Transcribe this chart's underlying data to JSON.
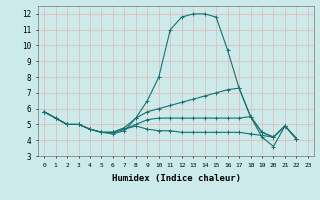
{
  "xlabel": "Humidex (Indice chaleur)",
  "xlim": [
    -0.5,
    23.5
  ],
  "ylim": [
    3,
    12.5
  ],
  "yticks": [
    3,
    4,
    5,
    6,
    7,
    8,
    9,
    10,
    11,
    12
  ],
  "xticks": [
    0,
    1,
    2,
    3,
    4,
    5,
    6,
    7,
    8,
    9,
    10,
    11,
    12,
    13,
    14,
    15,
    16,
    17,
    18,
    19,
    20,
    21,
    22,
    23
  ],
  "background_color": "#cceaea",
  "grid_color": "#e8b4b4",
  "line_color": "#1a7070",
  "line_width": 0.8,
  "marker": "+",
  "marker_size": 3,
  "series": [
    [
      5.8,
      5.4,
      5.0,
      5.0,
      4.7,
      4.5,
      4.4,
      4.6,
      5.4,
      6.5,
      8.0,
      11.0,
      11.8,
      12.0,
      12.0,
      11.8,
      9.7,
      7.3,
      5.5,
      4.2,
      3.6,
      4.9,
      4.1
    ],
    [
      5.8,
      5.4,
      5.0,
      5.0,
      4.7,
      4.5,
      4.5,
      4.8,
      5.4,
      5.8,
      6.0,
      6.2,
      6.4,
      6.6,
      6.8,
      7.0,
      7.2,
      7.3,
      5.5,
      4.5,
      4.2,
      4.9,
      4.1
    ],
    [
      5.8,
      5.4,
      5.0,
      5.0,
      4.7,
      4.5,
      4.5,
      4.7,
      5.0,
      5.3,
      5.4,
      5.4,
      5.4,
      5.4,
      5.4,
      5.4,
      5.4,
      5.4,
      5.5,
      4.5,
      4.2,
      4.9,
      4.1
    ],
    [
      5.8,
      5.4,
      5.0,
      5.0,
      4.7,
      4.5,
      4.5,
      4.7,
      4.9,
      4.7,
      4.6,
      4.6,
      4.5,
      4.5,
      4.5,
      4.5,
      4.5,
      4.5,
      4.4,
      4.3,
      4.2,
      4.9,
      4.1
    ]
  ],
  "series_x": [
    0,
    1,
    2,
    3,
    4,
    5,
    6,
    7,
    8,
    9,
    10,
    11,
    12,
    13,
    14,
    15,
    16,
    17,
    18,
    19,
    20,
    21,
    22
  ]
}
